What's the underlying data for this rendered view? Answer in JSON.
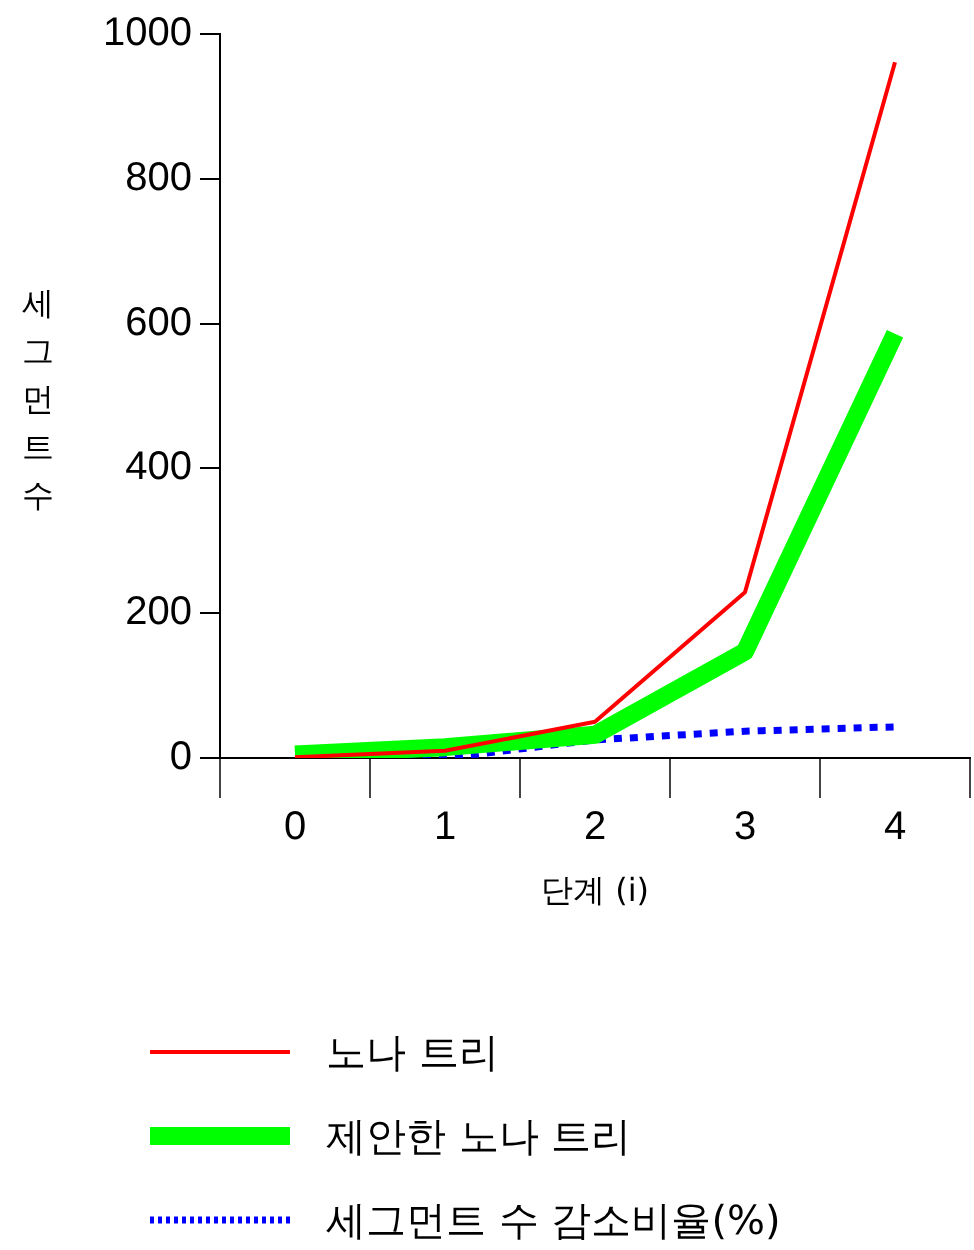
{
  "chart_data": {
    "type": "line",
    "xlabel": "단계 (i)",
    "ylabel": "세그먼트수",
    "categories": [
      "0",
      "1",
      "2",
      "3",
      "4"
    ],
    "series": [
      {
        "name": "노나 트리",
        "color": "#ff0000",
        "values": [
          1,
          10,
          50,
          229,
          961
        ],
        "line_style": "solid"
      },
      {
        "name": "제안한 노나 트리",
        "color": "#00ff00",
        "values": [
          5,
          15,
          32,
          147,
          586
        ],
        "line_style": "solid"
      },
      {
        "name": "세그먼트 수 감소비율(%)",
        "color": "#0000ff",
        "values": [
          0,
          0,
          25,
          37,
          43
        ],
        "line_style": "dotted"
      }
    ],
    "ylim": [
      0,
      1000
    ],
    "yticks": [
      0,
      200,
      400,
      600,
      800,
      1000
    ],
    "grid": false,
    "legend": "bottom",
    "marker": "none"
  }
}
